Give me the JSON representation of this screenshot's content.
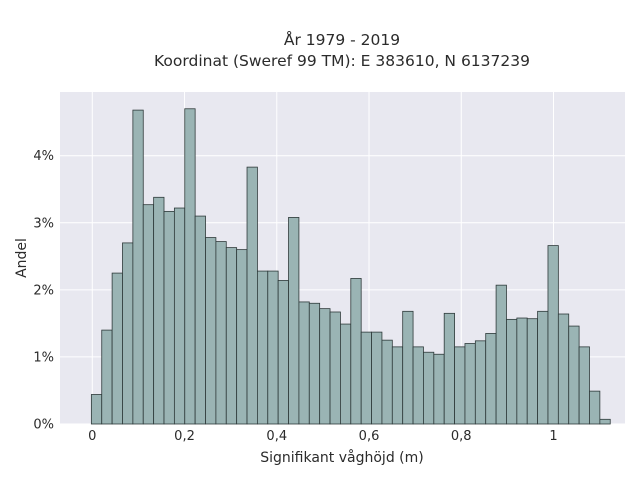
{
  "chart_data": {
    "type": "bar",
    "title": [
      "År 1979 - 2019",
      "Koordinat (Sweref 99 TM): E 383610, N 6137239"
    ],
    "xlabel": "Signifikant våghöjd (m)",
    "ylabel": "Andel",
    "xlim": [
      -0.07,
      1.155
    ],
    "ylim": [
      0,
      4.95
    ],
    "grid": true,
    "x_ticks": [
      0,
      0.2,
      0.4,
      0.6,
      0.8,
      1
    ],
    "x_tick_labels": [
      "0",
      "0,2",
      "0,4",
      "0,6",
      "0,8",
      "1"
    ],
    "y_ticks": [
      0,
      1,
      2,
      3,
      4
    ],
    "y_tick_labels": [
      "0%",
      "1%",
      "2%",
      "3%",
      "4%"
    ],
    "bin_width": 0.0225,
    "bin_start": -0.002,
    "values": [
      0.44,
      1.4,
      2.25,
      2.7,
      4.68,
      3.27,
      3.38,
      3.17,
      3.22,
      4.7,
      3.1,
      2.78,
      2.72,
      2.63,
      2.6,
      3.83,
      2.28,
      2.28,
      2.14,
      3.08,
      1.82,
      1.8,
      1.72,
      1.67,
      1.49,
      2.17,
      1.37,
      1.37,
      1.25,
      1.15,
      1.68,
      1.15,
      1.07,
      1.04,
      1.65,
      1.15,
      1.2,
      1.24,
      1.35,
      2.07,
      1.56,
      1.58,
      1.57,
      1.68,
      2.66,
      1.64,
      1.46,
      1.15,
      0.49,
      0.07
    ],
    "colors": {
      "plot_bg": "#e8e8f0",
      "grid": "#ffffff",
      "bar_fill": "#9ab4b4",
      "bar_edge": "#2e3a3a"
    }
  }
}
